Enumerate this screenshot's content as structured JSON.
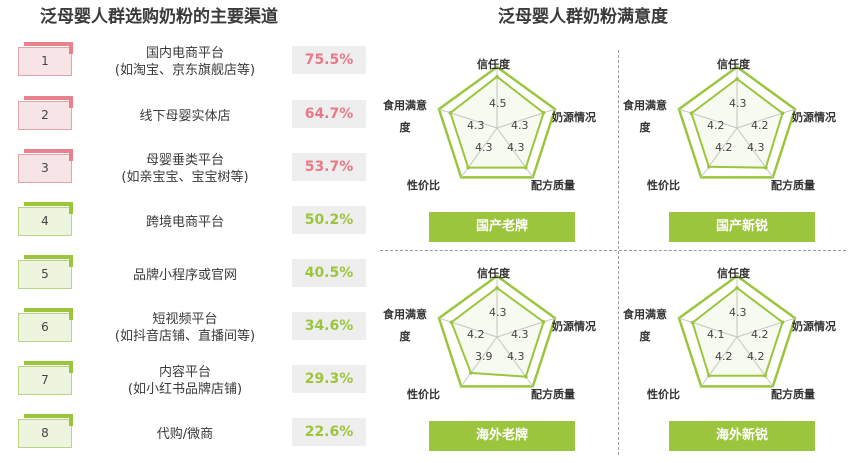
{
  "left_title": "泛母婴人群选购奶粉的主要渠道",
  "right_title": "泛母婴人群奶粉满意度",
  "channels": [
    {
      "rank": "1",
      "name_line1": "国内电商平台",
      "name_line2": "(如淘宝、京东旗舰店等)",
      "pct": "75.5%",
      "tone": "pink"
    },
    {
      "rank": "2",
      "name_line1": "线下母婴实体店",
      "name_line2": "",
      "pct": "64.7%",
      "tone": "pink"
    },
    {
      "rank": "3",
      "name_line1": "母婴垂类平台",
      "name_line2": "(如亲宝宝、宝宝树等)",
      "pct": "53.7%",
      "tone": "pink"
    },
    {
      "rank": "4",
      "name_line1": "跨境电商平台",
      "name_line2": "",
      "pct": "50.2%",
      "tone": "green"
    },
    {
      "rank": "5",
      "name_line1": "品牌小程序或官网",
      "name_line2": "",
      "pct": "40.5%",
      "tone": "green"
    },
    {
      "rank": "6",
      "name_line1": "短视频平台",
      "name_line2": "(如抖音店铺、直播间等)",
      "pct": "34.6%",
      "tone": "green"
    },
    {
      "rank": "7",
      "name_line1": "内容平台",
      "name_line2": "(如小红书品牌店铺)",
      "pct": "29.3%",
      "tone": "green"
    },
    {
      "rank": "8",
      "name_line1": "代购/微商",
      "name_line2": "",
      "pct": "22.6%",
      "tone": "green"
    }
  ],
  "colors": {
    "pink": "#e8818c",
    "green": "#9bc53d"
  },
  "chart_data": {
    "type": "radar",
    "axes": [
      "信任度",
      "奶源情况",
      "配方质量",
      "性价比",
      "食用满意度"
    ],
    "panels": [
      {
        "label": "国产老牌",
        "values": [
          4.5,
          4.3,
          4.3,
          4.3,
          4.3
        ],
        "value_labels": [
          "4.5",
          "4.3",
          "4.3",
          "4.3",
          "4.3"
        ]
      },
      {
        "label": "国产新锐",
        "values": [
          4.3,
          4.2,
          4.3,
          4.2,
          4.2
        ],
        "value_labels": [
          "4.3",
          "4.2",
          "4.3",
          "4.2",
          "4.2"
        ]
      },
      {
        "label": "海外老牌",
        "values": [
          4.3,
          4.3,
          4.3,
          3.9,
          4.2
        ],
        "value_labels": [
          "4.3",
          "4.3",
          "4.3",
          "3.9",
          "4.2"
        ]
      },
      {
        "label": "海外新锐",
        "values": [
          4.3,
          4.2,
          4.2,
          4.2,
          4.1
        ],
        "value_labels": [
          "4.3",
          "4.2",
          "4.2",
          "4.2",
          "4.1"
        ]
      }
    ]
  }
}
